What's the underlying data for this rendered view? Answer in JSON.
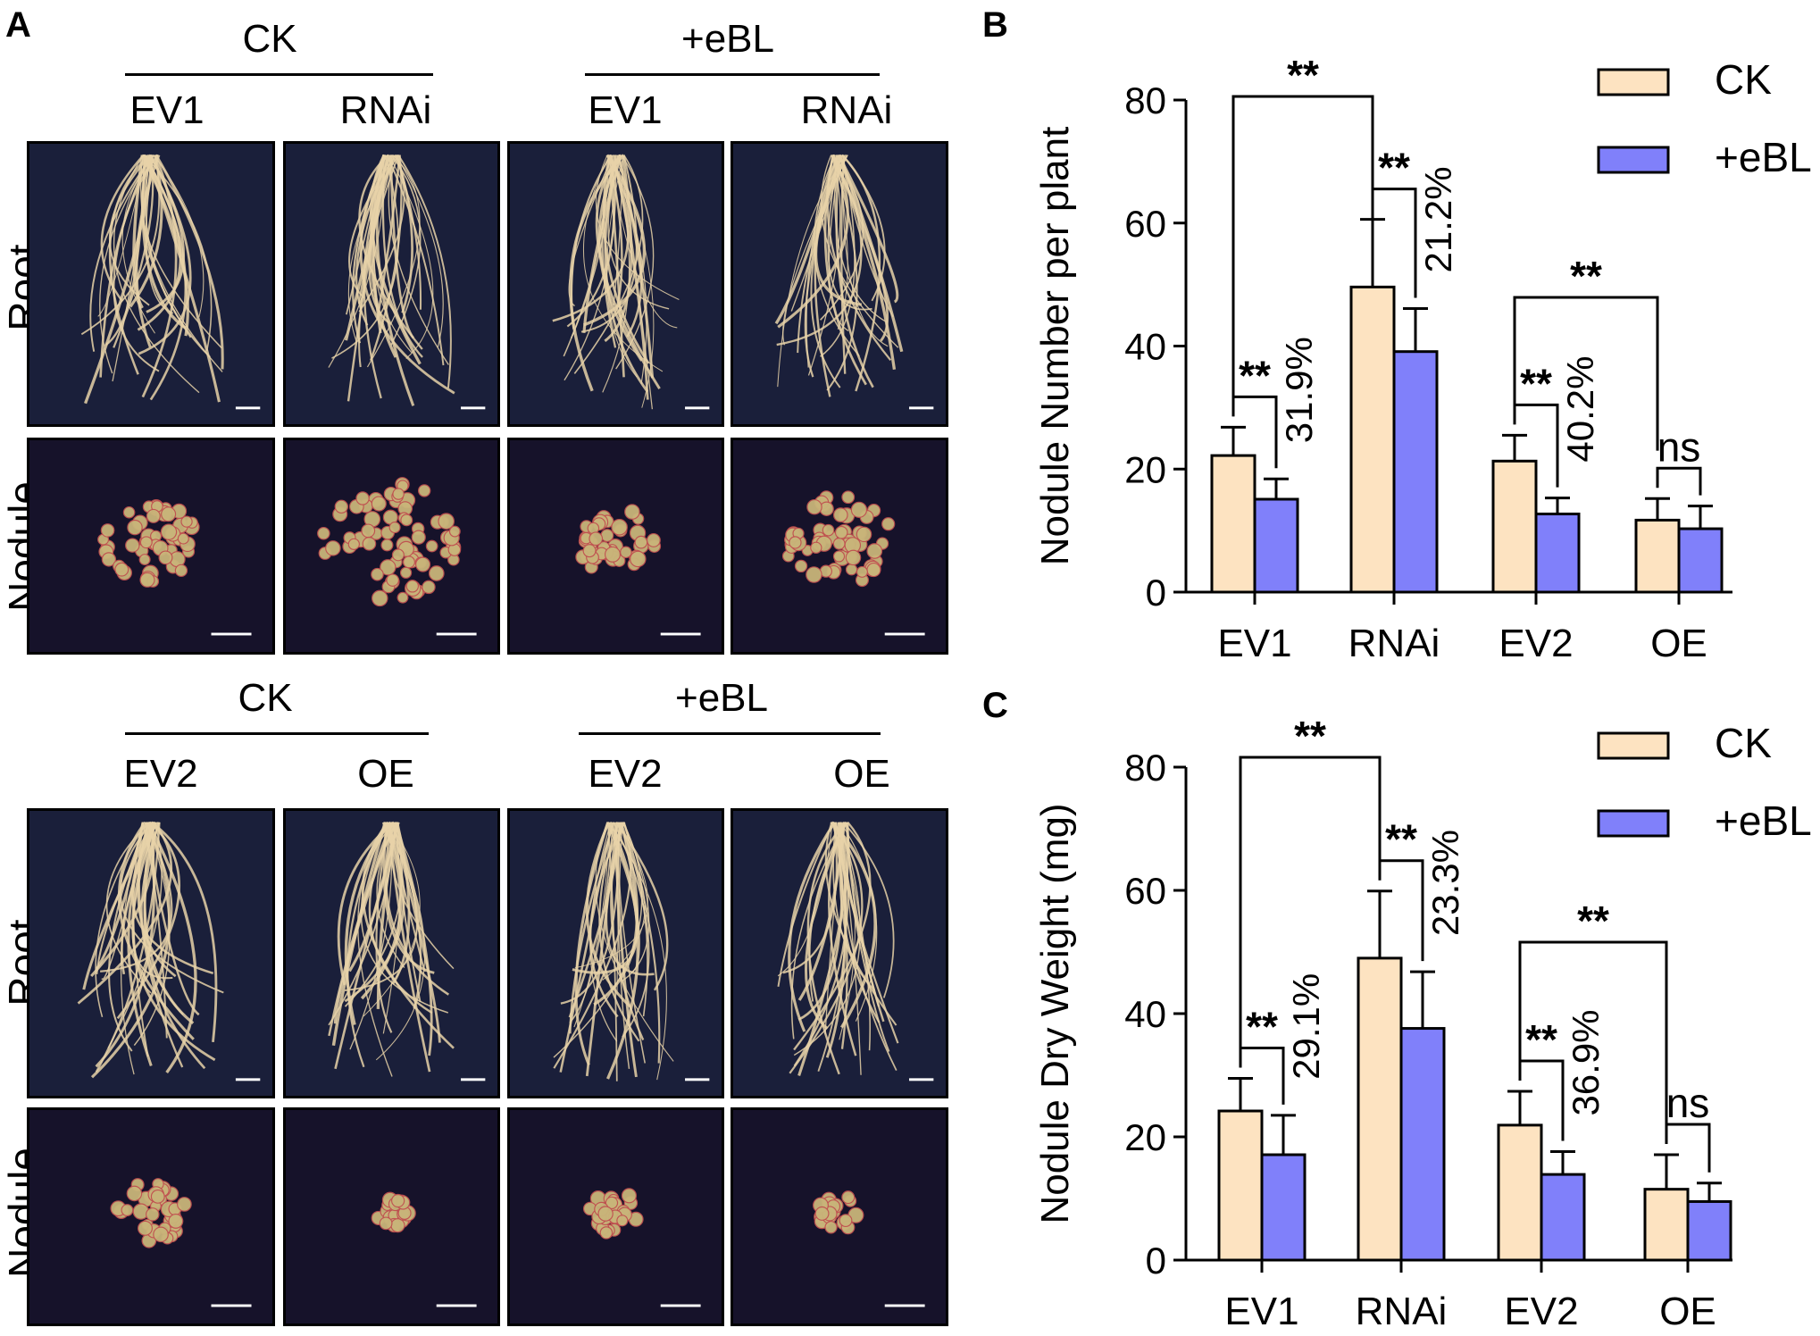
{
  "panel_a": {
    "letter": "A",
    "top": {
      "group_ck": "CK",
      "group_ebl": "+eBL",
      "cols": [
        "EV1",
        "RNAi",
        "EV1",
        "RNAi"
      ]
    },
    "bottom": {
      "group_ck": "CK",
      "group_ebl": "+eBL",
      "cols": [
        "EV2",
        "OE",
        "EV2",
        "OE"
      ]
    },
    "row_labels": [
      "Root",
      "Nodule",
      "Root",
      "Nodule"
    ],
    "colors": {
      "root_bg": "#1a1f3a",
      "root_fiber": "#e8d2a8",
      "nodule_bg": "#16122a",
      "nodule": "#c9b57a",
      "nodule_tint": "#c05050"
    }
  },
  "chart_data": [
    {
      "type": "bar",
      "panel": "B",
      "categories": [
        "EV1",
        "RNAi",
        "EV2",
        "OE"
      ],
      "series": [
        {
          "name": "CK",
          "values": [
            22.2,
            49.6,
            21.3,
            11.7
          ],
          "errors": [
            4.6,
            11.0,
            4.2,
            3.5
          ],
          "color": "#fde3c1"
        },
        {
          "name": "+eBL",
          "values": [
            15.1,
            39.1,
            12.7,
            10.3
          ],
          "errors": [
            3.3,
            7.0,
            2.6,
            3.7
          ],
          "color": "#8080fa"
        }
      ],
      "xlabel": "",
      "ylabel": "Nodule Number per plant",
      "ylim": [
        0,
        80
      ],
      "yticks": [
        "0",
        "20",
        "40",
        "60",
        "80"
      ],
      "legend_position": "top-right",
      "annotations": {
        "pair_sig": [
          "**",
          "**",
          "**",
          "ns"
        ],
        "pair_pct": [
          "31.9%",
          "21.2%",
          "40.2%",
          ""
        ],
        "cross_sig": [
          "**",
          "**"
        ]
      }
    },
    {
      "type": "bar",
      "panel": "C",
      "categories": [
        "EV1",
        "RNAi",
        "EV2",
        "OE"
      ],
      "series": [
        {
          "name": "CK",
          "values": [
            24.2,
            49.0,
            21.9,
            11.5
          ],
          "errors": [
            5.3,
            10.9,
            5.5,
            5.6
          ],
          "color": "#fde3c1"
        },
        {
          "name": "+eBL",
          "values": [
            17.1,
            37.6,
            13.9,
            9.5
          ],
          "errors": [
            6.4,
            9.2,
            3.7,
            3.0
          ],
          "color": "#8080fa"
        }
      ],
      "xlabel": "",
      "ylabel": "Nodule Dry Weight (mg)",
      "ylim": [
        0,
        80
      ],
      "yticks": [
        "0",
        "20",
        "40",
        "60",
        "80"
      ],
      "legend_position": "top-right",
      "annotations": {
        "pair_sig": [
          "**",
          "**",
          "**",
          "ns"
        ],
        "pair_pct": [
          "29.1%",
          "23.3%",
          "36.9%",
          ""
        ],
        "cross_sig": [
          "**",
          "**"
        ]
      }
    }
  ],
  "panel_letters": {
    "b": "B",
    "c": "C"
  }
}
